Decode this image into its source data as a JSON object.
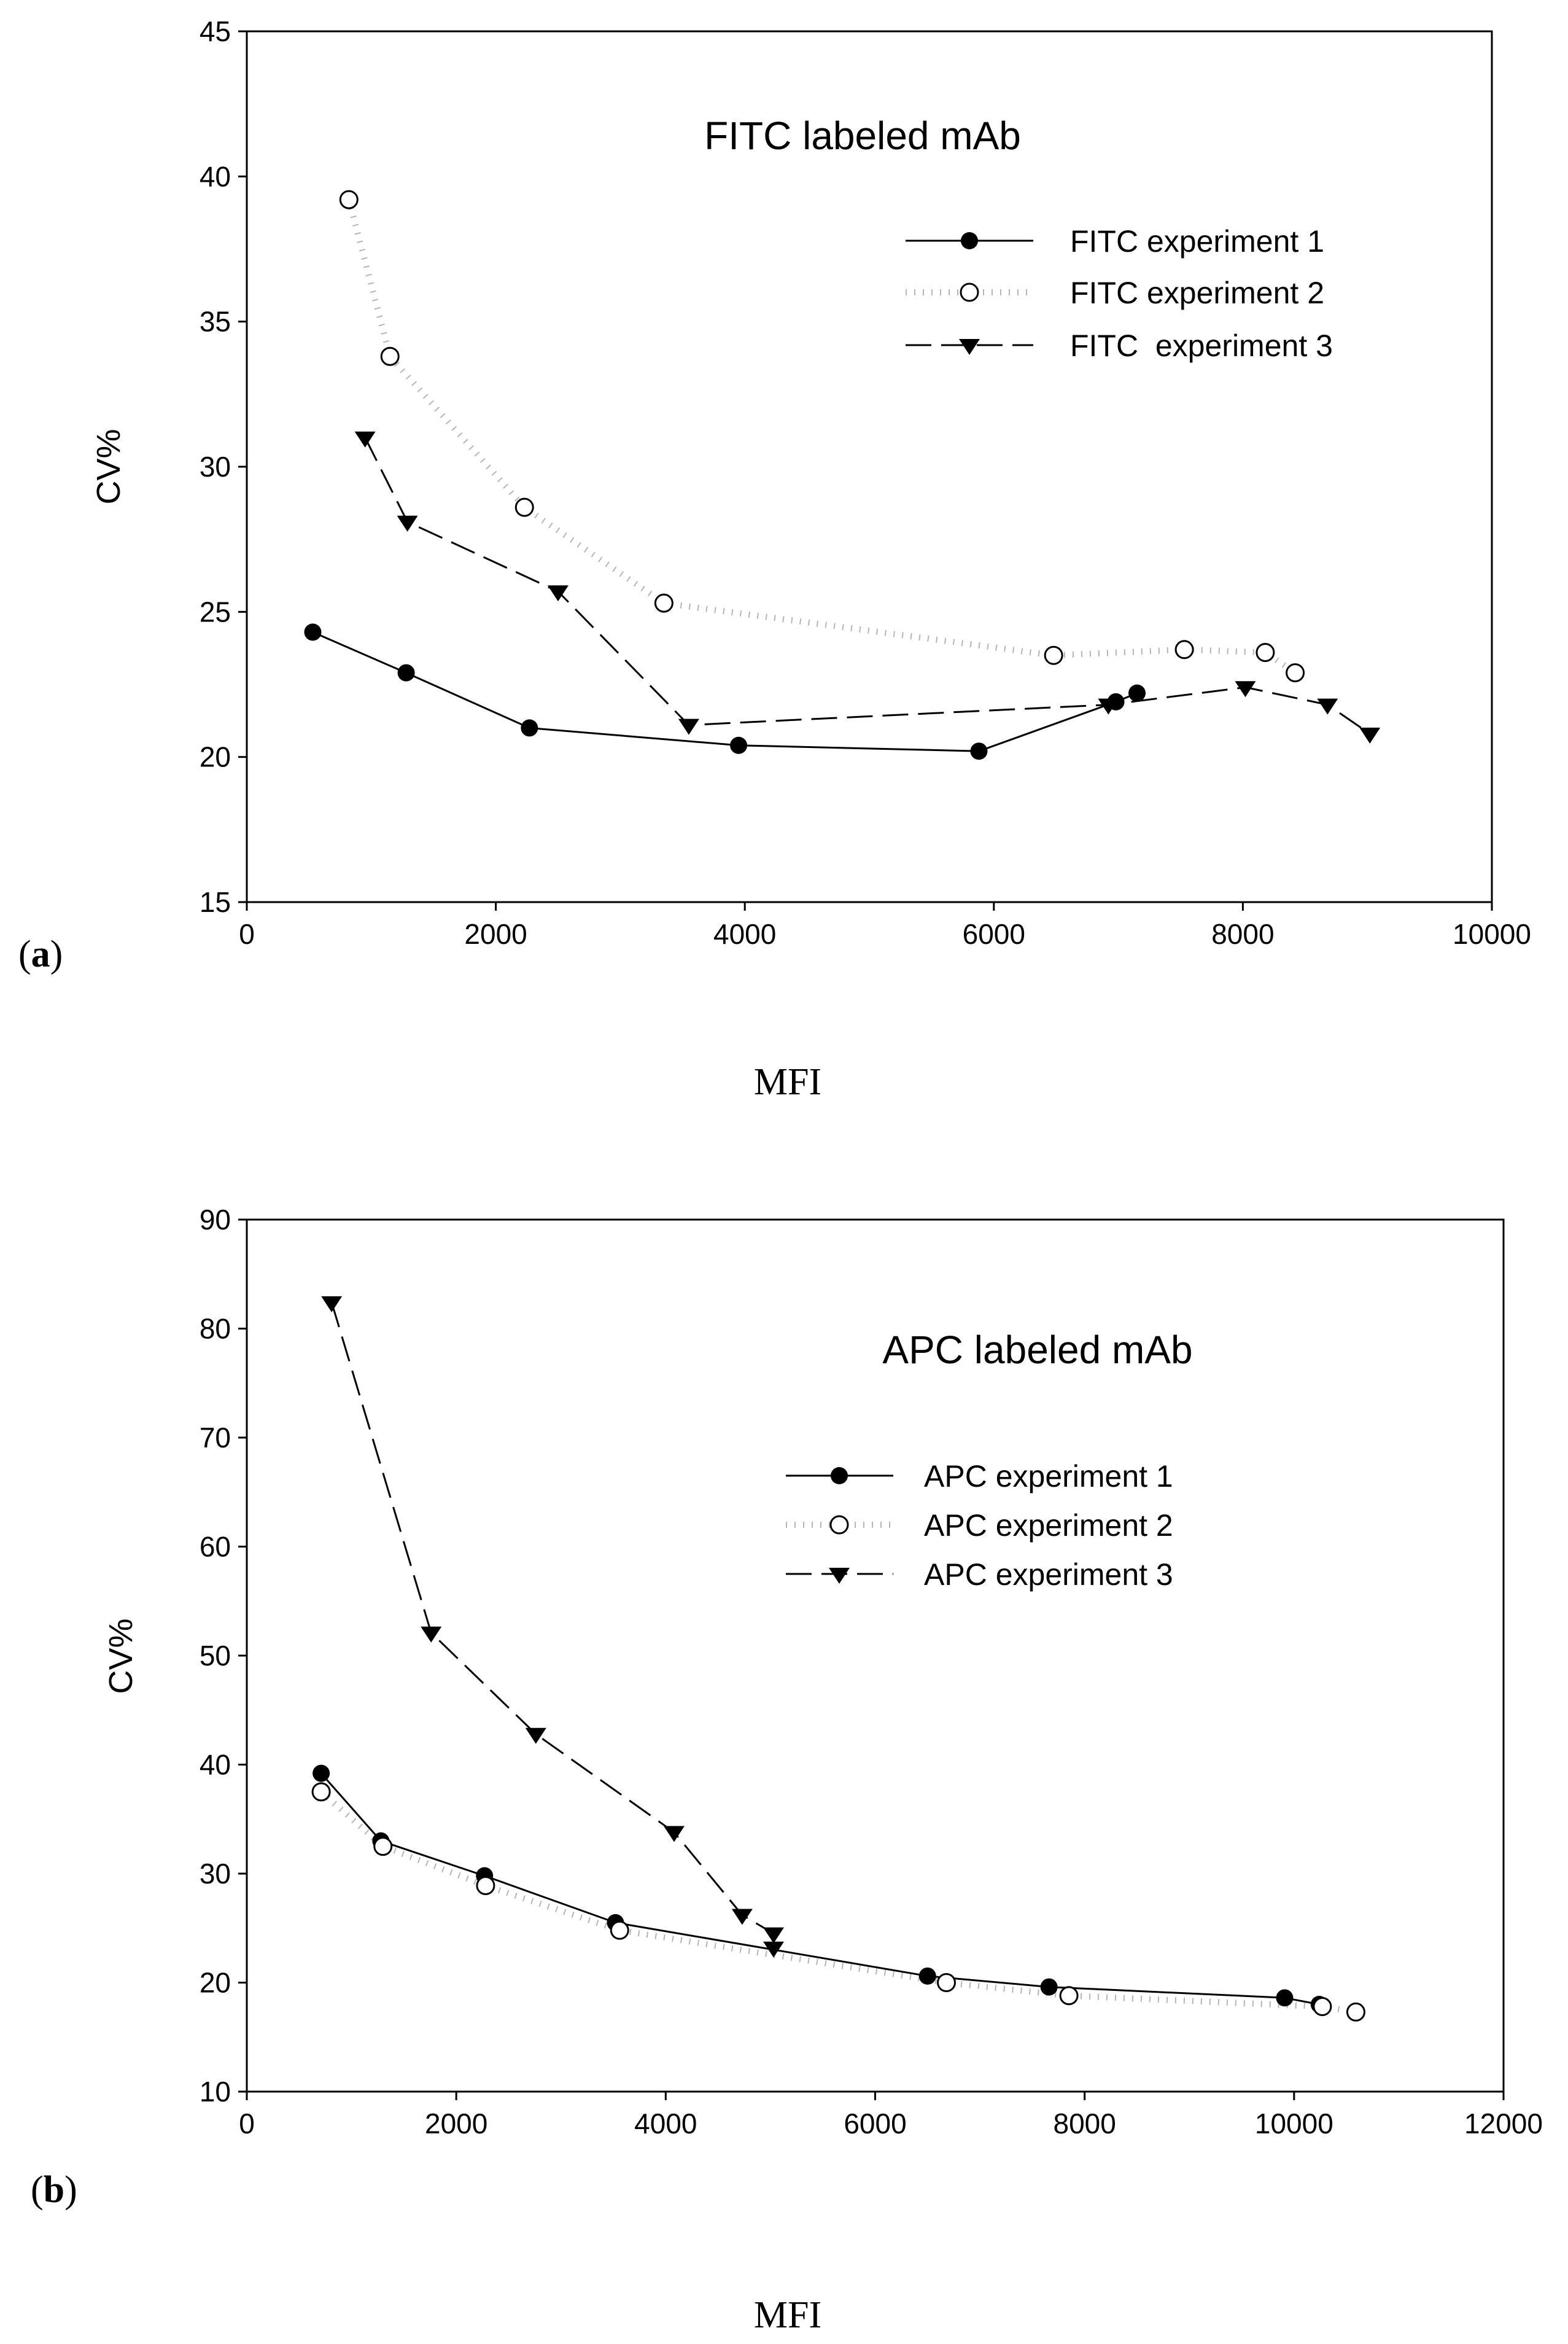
{
  "figure": {
    "panel_a_label": {
      "open": "(",
      "letter": "a",
      "close": ")"
    },
    "panel_b_label": {
      "open": "(",
      "letter": "b",
      "close": ")"
    }
  },
  "chart_data": [
    {
      "type": "line",
      "title": "FITC labeled mAb",
      "xlabel": "MFI",
      "ylabel": "CV%",
      "xlim": [
        0,
        10000
      ],
      "ylim": [
        15,
        45
      ],
      "xticks": [
        0,
        2000,
        4000,
        6000,
        8000,
        10000
      ],
      "yticks": [
        15,
        20,
        25,
        30,
        35,
        40,
        45
      ],
      "legend_position": "top-right",
      "series": [
        {
          "name": "FITC experiment 1",
          "marker": "filled-circle",
          "line": "solid",
          "x": [
            530,
            1280,
            2270,
            3950,
            5880,
            6980,
            7150
          ],
          "y": [
            24.3,
            22.9,
            21.0,
            20.4,
            20.2,
            21.9,
            22.2
          ]
        },
        {
          "name": "FITC experiment 2",
          "marker": "open-circle",
          "line": "dotted",
          "x": [
            820,
            1150,
            2230,
            3350,
            6480,
            7530,
            8180,
            8420
          ],
          "y": [
            39.2,
            33.8,
            28.6,
            25.3,
            23.5,
            23.7,
            23.6,
            22.9
          ]
        },
        {
          "name": "FITC  experiment 3",
          "marker": "filled-triangle-down",
          "line": "dashed",
          "x": [
            950,
            1290,
            2500,
            3550,
            6920,
            8020,
            8680,
            9020
          ],
          "y": [
            31.0,
            28.1,
            25.7,
            21.1,
            21.8,
            22.4,
            21.8,
            20.8
          ]
        }
      ]
    },
    {
      "type": "line",
      "title": "APC labeled mAb",
      "xlabel": "MFI",
      "ylabel": "CV%",
      "xlim": [
        0,
        12000
      ],
      "ylim": [
        10,
        90
      ],
      "xticks": [
        0,
        2000,
        4000,
        6000,
        8000,
        10000,
        12000
      ],
      "yticks": [
        10,
        20,
        30,
        40,
        50,
        60,
        70,
        80,
        90
      ],
      "legend_position": "center-right",
      "series": [
        {
          "name": "APC experiment 1",
          "marker": "filled-circle",
          "line": "solid",
          "x": [
            710,
            1280,
            2270,
            3520,
            6500,
            7660,
            9910,
            10240
          ],
          "y": [
            39.2,
            33.0,
            29.8,
            25.5,
            20.6,
            19.6,
            18.6,
            18.0
          ]
        },
        {
          "name": "APC experiment 2",
          "marker": "open-circle",
          "line": "dotted",
          "x": [
            710,
            1300,
            2280,
            3560,
            6680,
            7850,
            10270,
            10590
          ],
          "y": [
            37.5,
            32.5,
            28.9,
            24.8,
            20.0,
            18.8,
            17.8,
            17.3
          ]
        },
        {
          "name": "APC experiment 3",
          "marker": "filled-triangle-down",
          "line": "dashed",
          "x": [
            810,
            1760,
            2760,
            4080,
            4730,
            5030,
            5030
          ],
          "y": [
            82.4,
            52.1,
            42.8,
            33.8,
            26.2,
            24.5,
            23.2
          ]
        }
      ]
    }
  ]
}
